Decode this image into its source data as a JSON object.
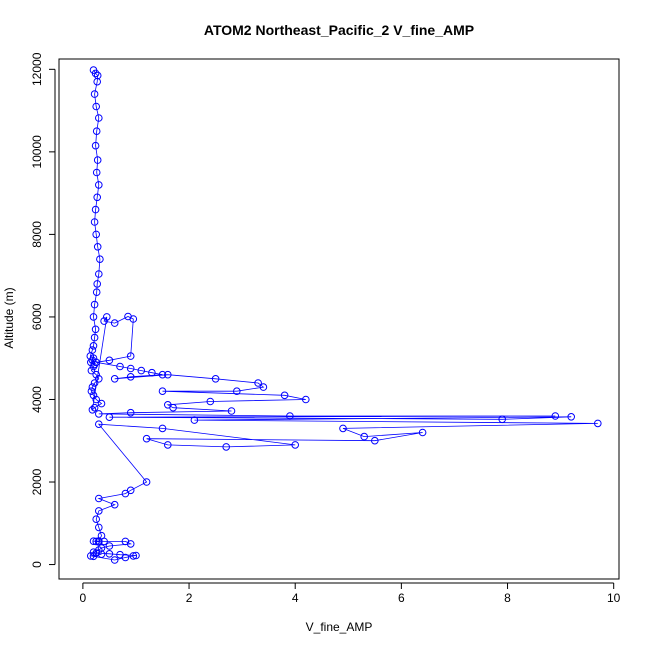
{
  "chart_data": {
    "type": "scatter",
    "title": "ATOM2 Northeast_Pacific_2 V_fine_AMP",
    "xlabel": "V_fine_AMP",
    "ylabel": "Altitude (m)",
    "xlim": [
      -0.45,
      10.1
    ],
    "ylim": [
      -350,
      12250
    ],
    "x_ticks": [
      0,
      2,
      4,
      6,
      8,
      10
    ],
    "y_ticks": [
      0,
      2000,
      4000,
      6000,
      8000,
      10000,
      12000
    ],
    "grid": false,
    "legend": "none",
    "marker": "open-circle",
    "connect_points": true,
    "color": "#0000ff",
    "series": [
      {
        "x": [
          0.2,
          0.24,
          0.28,
          0.27,
          0.22,
          0.25,
          0.3,
          0.26,
          0.24,
          0.28,
          0.26,
          0.3,
          0.27,
          0.24,
          0.22,
          0.25,
          0.28,
          0.32,
          0.3,
          0.27,
          0.26,
          0.22,
          0.2,
          0.24,
          0.22,
          0.2,
          0.18,
          0.14,
          0.2,
          0.18,
          0.15,
          0.22,
          0.2,
          0.16,
          0.25,
          0.3,
          0.22,
          0.18,
          0.16,
          0.2,
          0.25,
          0.35,
          0.22,
          0.18,
          0.45,
          0.4,
          0.6,
          0.85,
          0.95,
          0.9,
          0.5,
          0.25,
          0.7,
          0.9,
          1.1,
          1.3,
          1.5,
          0.9,
          0.6,
          1.6,
          2.5,
          3.3,
          3.4,
          2.9,
          1.5,
          3.8,
          4.2,
          2.4,
          1.6,
          1.7,
          2.8,
          0.9,
          0.3,
          3.9,
          8.9,
          0.5,
          7.9,
          9.2,
          2.1,
          9.7,
          4.9,
          5.3,
          6.4,
          5.5,
          1.2,
          1.6,
          2.7,
          4.0,
          1.5,
          0.3,
          1.2,
          0.9,
          0.8,
          0.3,
          0.6,
          0.3,
          0.25,
          0.3,
          0.35,
          0.3,
          0.25,
          0.2,
          0.3,
          0.4,
          0.8,
          0.9,
          0.5,
          0.35,
          0.3,
          0.2,
          0.25,
          0.5,
          0.7,
          1.0,
          0.95,
          0.8,
          0.6,
          0.15,
          0.2,
          0.35
        ],
        "y": [
          11980,
          11900,
          11850,
          11700,
          11400,
          11100,
          10820,
          10500,
          10150,
          9800,
          9500,
          9200,
          8900,
          8600,
          8300,
          8000,
          7700,
          7400,
          7040,
          6800,
          6600,
          6300,
          6000,
          5700,
          5500,
          5300,
          5200,
          5050,
          5000,
          4950,
          4900,
          4850,
          4800,
          4700,
          4600,
          4500,
          4400,
          4300,
          4200,
          4100,
          4000,
          3900,
          3800,
          3750,
          6000,
          5900,
          5850,
          6010,
          5950,
          5050,
          4950,
          4900,
          4800,
          4750,
          4700,
          4650,
          4600,
          4550,
          4500,
          4600,
          4500,
          4400,
          4300,
          4200,
          4200,
          4100,
          4000,
          3950,
          3870,
          3800,
          3720,
          3680,
          3650,
          3600,
          3600,
          3570,
          3520,
          3580,
          3500,
          3420,
          3300,
          3100,
          3200,
          3000,
          3050,
          2900,
          2850,
          2900,
          3300,
          3400,
          2000,
          1800,
          1720,
          1600,
          1450,
          1300,
          1100,
          900,
          700,
          550,
          560,
          565,
          570,
          560,
          560,
          500,
          450,
          400,
          350,
          300,
          280,
          260,
          240,
          220,
          210,
          170,
          110,
          210,
          200,
          250
        ]
      }
    ]
  }
}
